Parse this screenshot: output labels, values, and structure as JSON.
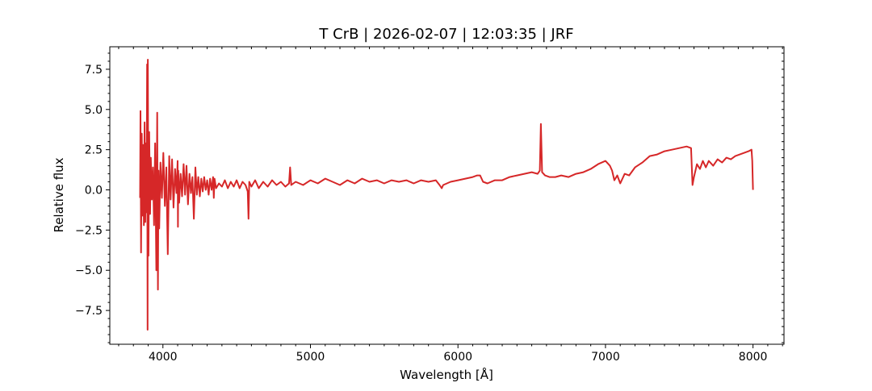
{
  "chart_data": {
    "type": "line",
    "title": "T CrB | 2026-02-07 | 12:03:35 | JRF",
    "xlabel": "Wavelength [Å]",
    "ylabel": "Relative flux",
    "xlim": [
      3640,
      8210
    ],
    "ylim": [
      -9.6,
      8.9
    ],
    "xticks": [
      4000,
      5000,
      6000,
      7000,
      8000
    ],
    "xtick_labels": [
      "4000",
      "5000",
      "6000",
      "7000",
      "8000"
    ],
    "yticks": [
      -7.5,
      -5.0,
      -2.5,
      0.0,
      2.5,
      5.0,
      7.5
    ],
    "ytick_labels": [
      "−7.5",
      "−5.0",
      "−2.5",
      "0.0",
      "2.5",
      "5.0",
      "7.5"
    ],
    "grid": false,
    "legend": "none",
    "series": [
      {
        "color": "#d62728",
        "x": [
          3845,
          3848,
          3852,
          3857,
          3862,
          3866,
          3871,
          3876,
          3880,
          3885,
          3889,
          3893,
          3896,
          3898,
          3902,
          3907,
          3913,
          3918,
          3925,
          3932,
          3940,
          3947,
          3955,
          3961,
          3966,
          3970,
          3975,
          3983,
          3993,
          4003,
          4013,
          4023,
          4033,
          4043,
          4052,
          4062,
          4072,
          4082,
          4092,
          4100,
          4102,
          4104,
          4110,
          4120,
          4130,
          4140,
          4150,
          4160,
          4170,
          4180,
          4190,
          4200,
          4210,
          4220,
          4230,
          4240,
          4250,
          4260,
          4270,
          4280,
          4290,
          4300,
          4310,
          4320,
          4330,
          4340,
          4345,
          4350,
          4360,
          4380,
          4400,
          4420,
          4440,
          4460,
          4480,
          4500,
          4520,
          4540,
          4560,
          4575,
          4580,
          4585,
          4600,
          4625,
          4650,
          4680,
          4710,
          4740,
          4770,
          4800,
          4830,
          4855,
          4862,
          4870,
          4900,
          4950,
          5000,
          5050,
          5100,
          5150,
          5200,
          5250,
          5300,
          5350,
          5400,
          5450,
          5500,
          5550,
          5600,
          5650,
          5700,
          5750,
          5800,
          5850,
          5875,
          5890,
          5900,
          5950,
          6000,
          6050,
          6100,
          6130,
          6150,
          6170,
          6200,
          6250,
          6300,
          6350,
          6400,
          6450,
          6500,
          6540,
          6555,
          6562,
          6570,
          6590,
          6620,
          6660,
          6700,
          6750,
          6800,
          6850,
          6900,
          6950,
          7000,
          7030,
          7045,
          7060,
          7080,
          7100,
          7130,
          7160,
          7200,
          7250,
          7300,
          7350,
          7400,
          7450,
          7500,
          7550,
          7580,
          7590,
          7600,
          7620,
          7640,
          7660,
          7680,
          7700,
          7730,
          7760,
          7790,
          7820,
          7850,
          7880,
          7910,
          7940,
          7970,
          7990,
          7995,
          8000
        ],
        "y": [
          -0.5,
          4.9,
          -3.9,
          3.5,
          -1.6,
          2.8,
          -2.2,
          4.2,
          -2.0,
          2.9,
          -1.4,
          7.8,
          -8.7,
          8.1,
          -4.1,
          3.6,
          -1.5,
          2.0,
          -0.6,
          1.4,
          -2.2,
          2.9,
          -5.0,
          4.8,
          -6.2,
          1.2,
          -2.4,
          1.7,
          -0.5,
          2.3,
          -1.0,
          1.4,
          -4.0,
          2.1,
          -0.6,
          1.9,
          -1.1,
          1.3,
          -0.2,
          1.8,
          -2.3,
          1.2,
          -0.8,
          1.0,
          -0.4,
          1.6,
          -0.3,
          1.5,
          -0.9,
          1.0,
          -0.2,
          0.8,
          -1.8,
          1.4,
          -0.3,
          0.8,
          -0.4,
          0.7,
          -0.1,
          0.8,
          0.0,
          0.6,
          -0.3,
          0.7,
          0.0,
          0.8,
          -0.5,
          0.7,
          0.1,
          0.4,
          0.2,
          0.6,
          0.1,
          0.5,
          0.2,
          0.6,
          0.1,
          0.5,
          0.3,
          -0.1,
          -1.8,
          0.5,
          0.2,
          0.6,
          0.1,
          0.5,
          0.2,
          0.6,
          0.3,
          0.5,
          0.2,
          0.4,
          1.4,
          0.3,
          0.5,
          0.3,
          0.6,
          0.4,
          0.7,
          0.5,
          0.3,
          0.6,
          0.4,
          0.7,
          0.5,
          0.6,
          0.4,
          0.6,
          0.5,
          0.6,
          0.4,
          0.6,
          0.5,
          0.6,
          0.3,
          0.1,
          0.3,
          0.5,
          0.6,
          0.7,
          0.8,
          0.9,
          0.9,
          0.5,
          0.4,
          0.6,
          0.6,
          0.8,
          0.9,
          1.0,
          1.1,
          1.0,
          1.2,
          4.1,
          1.1,
          0.9,
          0.8,
          0.8,
          0.9,
          0.8,
          1.0,
          1.1,
          1.3,
          1.6,
          1.8,
          1.5,
          1.2,
          0.6,
          0.9,
          0.4,
          1.0,
          0.9,
          1.4,
          1.7,
          2.1,
          2.2,
          2.4,
          2.5,
          2.6,
          2.7,
          2.6,
          0.3,
          0.8,
          1.6,
          1.3,
          1.8,
          1.4,
          1.8,
          1.5,
          1.9,
          1.7,
          2.0,
          1.9,
          2.1,
          2.2,
          2.3,
          2.4,
          2.5,
          1.8,
          0.0
        ]
      }
    ]
  }
}
